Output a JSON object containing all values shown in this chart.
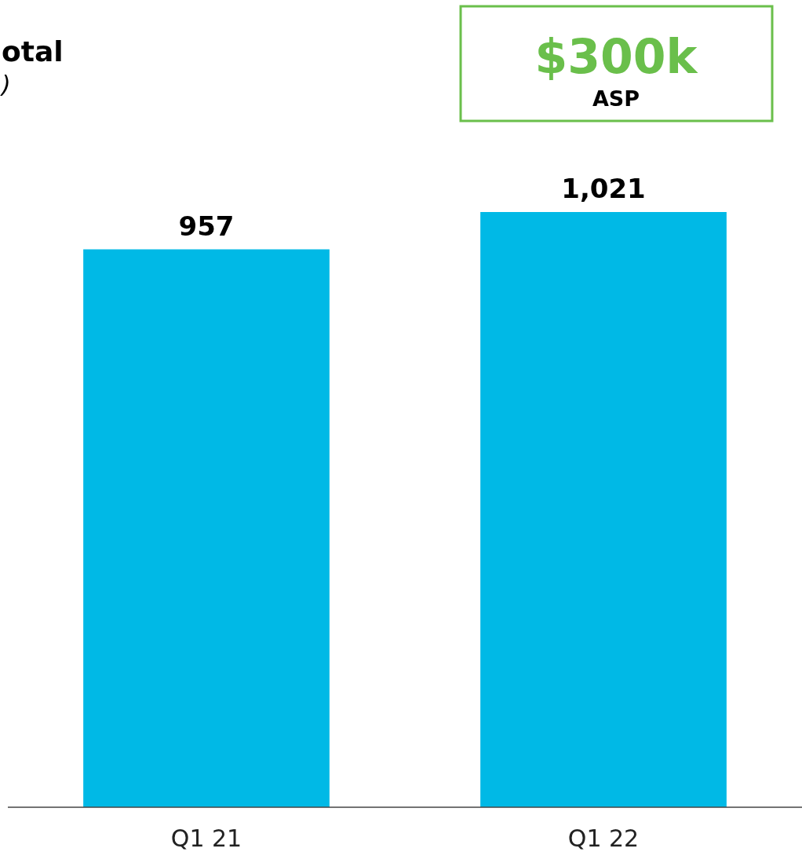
{
  "chart_data": {
    "type": "bar",
    "title": "otal",
    "subtitle": ")",
    "categories": [
      "Q1 21",
      "Q1 22"
    ],
    "values": [
      957,
      1021
    ],
    "color": "#00b9e6",
    "tick_labels": "x",
    "value_labels": [
      "957",
      "1,021"
    ],
    "annotations": [
      "$300k",
      "ASP"
    ]
  }
}
